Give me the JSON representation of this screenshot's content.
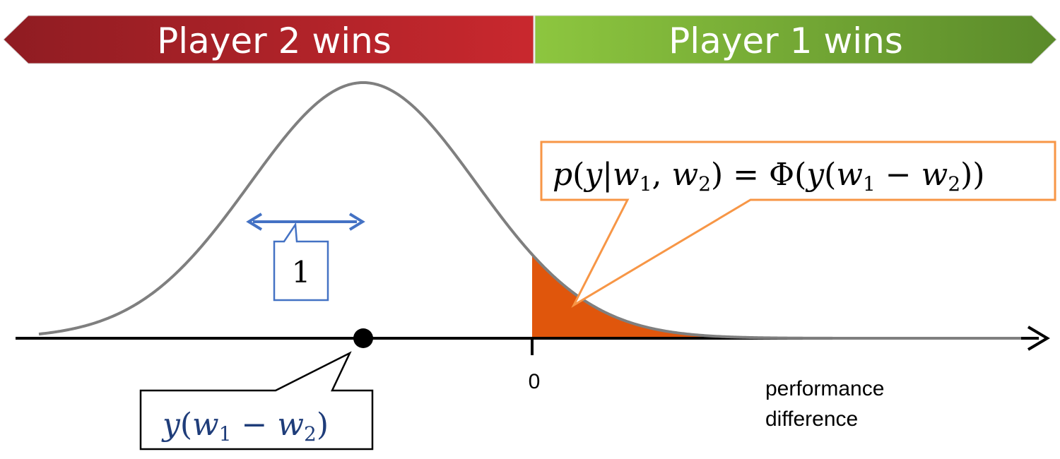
{
  "banners": {
    "left": {
      "label": "Player 2 wins",
      "color_start": "#8f1c22",
      "color_end": "#c9282e"
    },
    "right": {
      "label": "Player 1 wins",
      "color_start": "#8dc63f",
      "color_end": "#5a8a2a"
    }
  },
  "axis": {
    "zero_label": "0",
    "axis_label_line1": "performance",
    "axis_label_line2": "difference"
  },
  "callouts": {
    "width_label": "1",
    "mean_label": {
      "y": "y",
      "open": "(",
      "w1": "w",
      "sub1": "1",
      "minus": " − ",
      "w2": "w",
      "sub2": "2",
      "close": ")"
    },
    "probability_label": {
      "p": "p",
      "lp": "(",
      "y": "y",
      "bar": "|",
      "w1": "w",
      "sub1": "1",
      "comma": ", ",
      "w2": "w",
      "sub2": "2",
      "rp": ")",
      "eq": " = ",
      "phi": "Φ",
      "lp2": "(",
      "y2": "y",
      "lp3": "(",
      "w3": "w",
      "sub3": "1",
      "minus": " − ",
      "w4": "w",
      "sub4": "2",
      "rp3": "))"
    }
  },
  "colors": {
    "curve": "#7f7f7f",
    "axis": "#000000",
    "tail_fill": "#e0560c",
    "width_callout": "#4472c4",
    "mean_callout": "#000000",
    "probability_callout": "#f79646",
    "mean_label_text": "#1f3d7a"
  }
}
